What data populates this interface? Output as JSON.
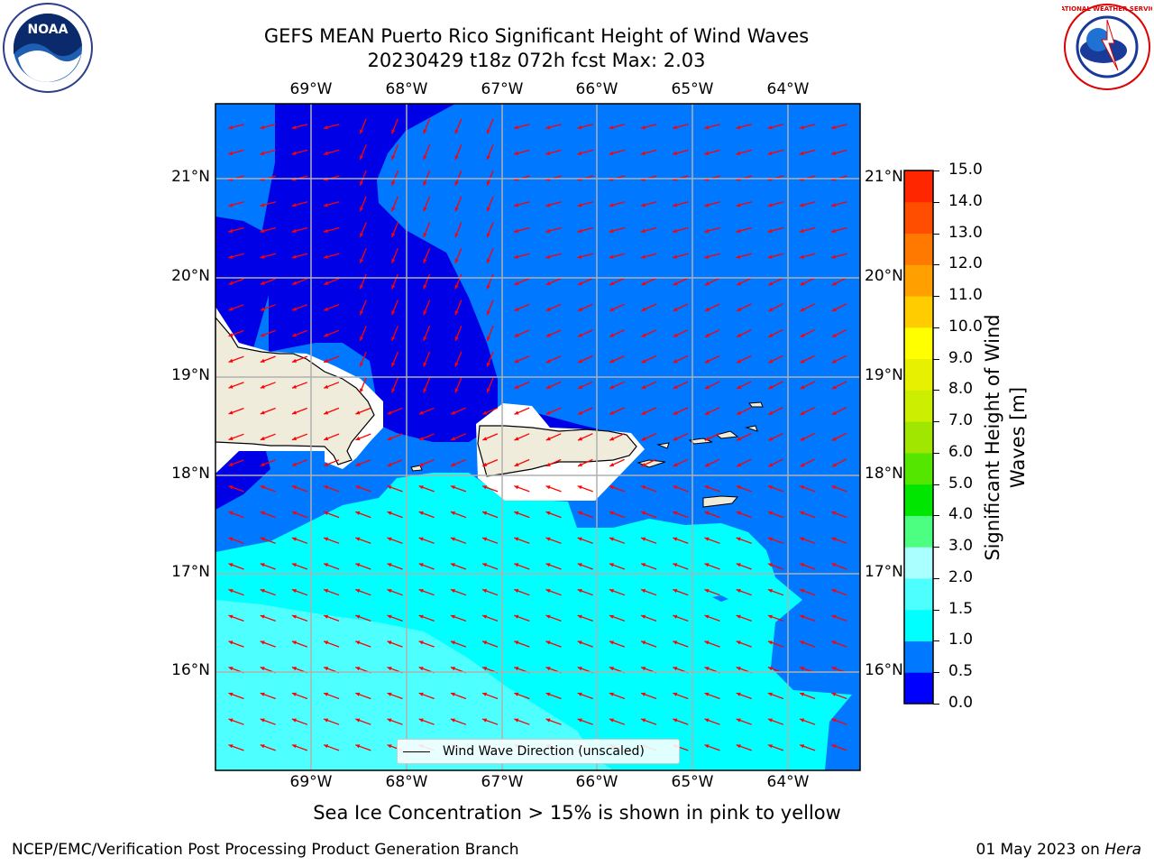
{
  "title_line1": "GEFS MEAN Puerto Rico Significant Height of Wind Waves",
  "title_line2": "20230429 t18z 072h fcst   Max: 2.03",
  "logos": {
    "left": "NOAA",
    "right": "NATIONAL WEATHER SERVICE"
  },
  "map": {
    "lon_labels": [
      "69°W",
      "68°W",
      "67°W",
      "66°W",
      "65°W",
      "64°W"
    ],
    "lat_labels": [
      "21°N",
      "20°N",
      "19°N",
      "18°N",
      "17°N",
      "16°N"
    ],
    "legend_label": "Wind Wave Direction (unscaled)",
    "colors": {
      "land": "#efecdc",
      "mask": "#ffffff",
      "arrows": "#ff0000",
      "grid": "#b0b0b0"
    }
  },
  "colorbar": {
    "label": "Significant Height of Wind Waves [m]",
    "ticks": [
      "0.0",
      "0.5",
      "1.0",
      "1.5",
      "2.0",
      "3.0",
      "4.0",
      "5.0",
      "6.0",
      "7.0",
      "8.0",
      "9.0",
      "10.0",
      "11.0",
      "12.0",
      "13.0",
      "14.0",
      "15.0"
    ],
    "colors": [
      "#0000ff",
      "#0078ff",
      "#00ffff",
      "#4dffff",
      "#aaffff",
      "#4dff80",
      "#00e600",
      "#55e600",
      "#a0e600",
      "#ccee00",
      "#e6f000",
      "#ffff00",
      "#ffcc00",
      "#ffa000",
      "#ff7800",
      "#ff4e00",
      "#ff2600"
    ]
  },
  "note": "Sea Ice Concentration > 15% is shown in pink to yellow",
  "footer_left": "NCEP/EMC/Verification Post Processing Product Generation Branch",
  "footer_right_date": "01 May 2023 on",
  "footer_right_host": "Hera"
}
